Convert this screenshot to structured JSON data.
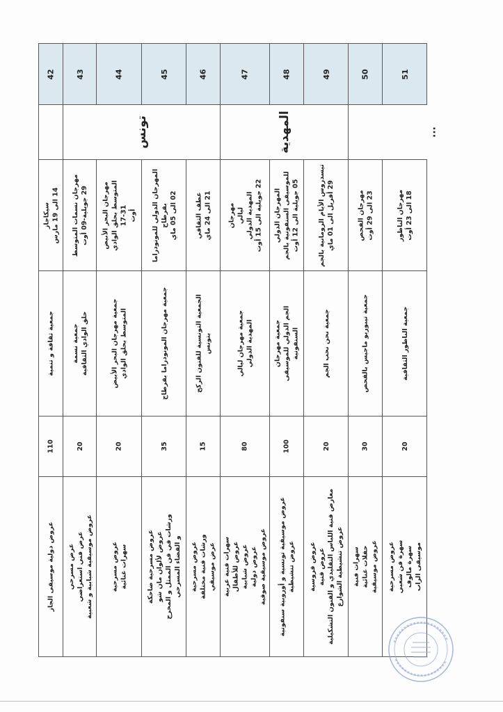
{
  "colors": {
    "header_fill": "#dbe8ef",
    "border": "#555555",
    "stamp": "#6f86c9"
  },
  "rows": [
    {
      "no": "42",
      "count": "110",
      "activities": [
        "عروض دولية موسيقى الجاز"
      ],
      "association": [
        "جمعية ثقافة و تنمية"
      ],
      "festival": [
        "سيكاجاز",
        "14 الى 19 مارس"
      ]
    },
    {
      "no": "43",
      "count": "20",
      "activities": [
        "عرض مسرحي",
        "عرض فني استعراضي",
        "عروض موسيقية شبابية و شعبية"
      ],
      "association": [
        "جمعية نسمة",
        "حلق الوادي الثقافية"
      ],
      "festival": [
        "مهرجان نسمات المتوسط",
        "29 جويلية-09 أوت"
      ]
    },
    {
      "no": "44",
      "count": "20",
      "activities": [
        "عروض مسرحية",
        "سهرات غنائية"
      ],
      "association": [
        "جمعية مهرجان البحر الأبيض",
        "المتوسط بحلق الوادي"
      ],
      "festival": [
        "مهرجان البحر الأبيض",
        "المتوسط بحلق الوادي",
        "17-31",
        "أوت"
      ]
    },
    {
      "no": "45",
      "count": "35",
      "activities": [
        "عروض مسرحية ضاحكة",
        "عروض لألوان مان شو",
        "ورشات في فن الممثل و المخرج",
        "و الفضاء المسرحي"
      ],
      "association": [
        "جمعية مهرجان المونودراما بقرطاج"
      ],
      "festival": [
        "المهرجان الدولي للمونودراما",
        "بقرطاج",
        "02 الى 05 ماي"
      ]
    },
    {
      "no": "46",
      "count": "15",
      "activities": [
        "عروض مسرحية",
        "ورشات فنية مختلفة",
        "عرض موسيقي"
      ],
      "association": [
        "الجمعية التونسية للفنون الركح",
        "بتونس"
      ],
      "festival": [
        "عطف الثقافي",
        "21 الى 24 ماي"
      ]
    },
    {
      "no": "47",
      "count": "80",
      "activities": [
        "سهرات فنية عربية",
        "عروض للأطفال",
        "عروض شبابية",
        "عروض دولية",
        "عروض موسيقية صوفية"
      ],
      "association": [
        "جمعية مهرجان ليالي",
        "المهدية الدولي"
      ],
      "festival": [
        "مهرجان",
        "ليالي",
        "المهدية الدولي",
        "22 جويلية الى 15 أوت"
      ]
    },
    {
      "no": "48",
      "count": "100",
      "activities": [
        "عروض موسيقية تونسية و أوروبية سنفونية",
        "عروض تنشيطية"
      ],
      "association": [
        "جمعية مهرجان",
        "الجم الدولي للموسيقى",
        "السنفونية"
      ],
      "festival": [
        "المهرجان الدولي",
        "للموسيقى السنفونية بالجم",
        "05 جويلية الى 12 أوت"
      ]
    },
    {
      "no": "49",
      "count": "20",
      "activities": [
        "عروض فروسية",
        "عروض فنية",
        "معارض فنية اللباس التقليدي و الفنون التشكيلية",
        "عروض تنشيطية الشوارع"
      ],
      "association": [
        "جمعية نحن نحب الجم"
      ],
      "festival": [
        "تيسدروس الأيام الرومانية بالجم",
        "29 أفريل الى 01 ماي"
      ]
    },
    {
      "no": "50",
      "count": "30",
      "activities": [
        "سهرات فنية",
        "حفلات غنائية",
        "عروض موسيقية"
      ],
      "association": [
        "جمعية تيبوربو ماجيس بالفحص"
      ],
      "festival": [
        "مهرجان الفحص",
        "23 الى 29 أوت"
      ]
    },
    {
      "no": "51",
      "count": "20",
      "activities": [
        "عروض مسرحية",
        "سهرة فن شعبي",
        "سهرة مالوف",
        "موسيقى الراب"
      ],
      "association": [
        "جمعية الناظور الثقافية"
      ],
      "festival": [
        "مهرجان الناظور",
        "18 الى 23 أوت"
      ]
    }
  ],
  "governorates": [
    {
      "name": "",
      "rows": [
        "42"
      ]
    },
    {
      "name": "تونس",
      "rows": [
        "43",
        "44",
        "45",
        "46"
      ]
    },
    {
      "name": "المهدية",
      "rows": [
        "47",
        "48",
        "49"
      ]
    },
    {
      "name": "",
      "rows": [
        "50",
        "51"
      ]
    }
  ],
  "trailing_marks": "...",
  "stamp": {
    "shape": "round-seal",
    "text": ""
  }
}
